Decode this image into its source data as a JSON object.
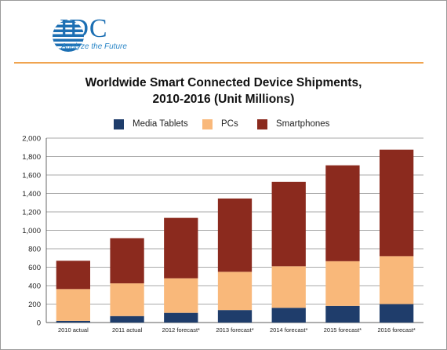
{
  "header": {
    "logo_text": "IDC",
    "logo_tagline": "Analyze the Future",
    "brand_color": "#1c6fb3",
    "accent_rule_color": "#f0a450"
  },
  "chart_data": {
    "type": "bar",
    "stacked": true,
    "title": "Worldwide Smart Connected Device Shipments,",
    "subtitle": "2010-2016 (Unit Millions)",
    "xlabel": "",
    "ylabel": "",
    "ylim": [
      0,
      2000
    ],
    "yticks": [
      "0",
      "200",
      "400",
      "600",
      "800",
      "1,000",
      "1,200",
      "1,400",
      "1,600",
      "1,800",
      "2,000"
    ],
    "grid": true,
    "legend_position": "top",
    "categories": [
      "2010 actual",
      "2011 actual",
      "2012 forecast*",
      "2013 forecast*",
      "2014 forecast*",
      "2015 forecast*",
      "2016 forecast*"
    ],
    "series": [
      {
        "name": "Media Tablets",
        "color": "#1f3d6b",
        "values": [
          18,
          70,
          105,
          135,
          160,
          180,
          200
        ]
      },
      {
        "name": "PCs",
        "color": "#f9b87a",
        "values": [
          345,
          355,
          375,
          415,
          450,
          485,
          520
        ]
      },
      {
        "name": "Smartphones",
        "color": "#8b2a1e",
        "values": [
          307,
          490,
          655,
          795,
          915,
          1040,
          1155
        ]
      }
    ]
  }
}
